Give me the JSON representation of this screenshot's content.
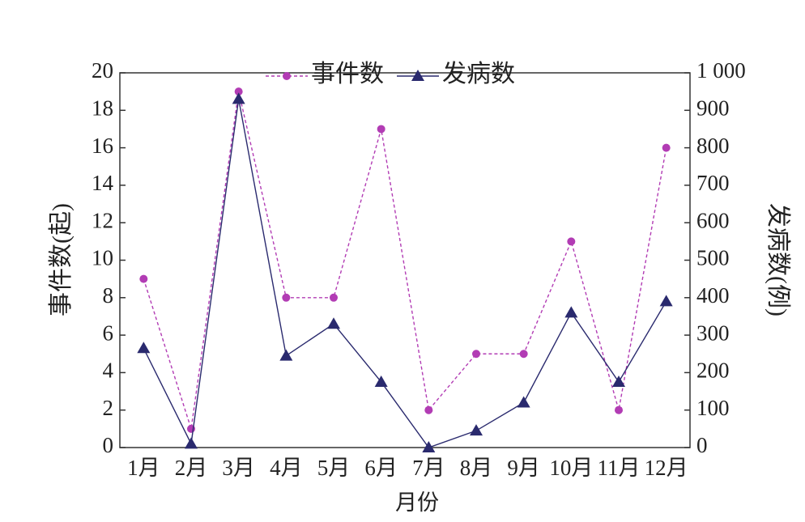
{
  "chart_data": {
    "type": "line",
    "categories": [
      "1月",
      "2月",
      "3月",
      "4月",
      "5月",
      "6月",
      "7月",
      "8月",
      "9月",
      "10月",
      "11月",
      "12月"
    ],
    "x_label": "月份",
    "y_label": "事件数(起)",
    "y2_label": "发病数(例)",
    "series": [
      {
        "name": "事件数",
        "color": "#b23cb4",
        "linestyle": "dashed",
        "marker": "circle",
        "values": [
          9,
          1,
          19,
          8,
          8,
          17,
          2,
          5,
          5,
          11,
          2,
          16
        ]
      },
      {
        "name": "发病数",
        "color": "#2a2a6e",
        "linestyle": "solid",
        "marker": "triangle",
        "axis": "y2",
        "values": [
          265,
          10,
          930,
          245,
          330,
          175,
          0,
          45,
          120,
          360,
          175,
          390
        ]
      }
    ],
    "ylim": [
      0,
      20
    ],
    "yticks": [
      0,
      2,
      4,
      6,
      8,
      10,
      12,
      14,
      16,
      18,
      20
    ],
    "y2lim": [
      0,
      1000
    ],
    "y2ticks": [
      0,
      100,
      200,
      300,
      400,
      500,
      600,
      700,
      800,
      900,
      {
        "value": 1000,
        "label": "1 000"
      }
    ],
    "legend": "top"
  }
}
